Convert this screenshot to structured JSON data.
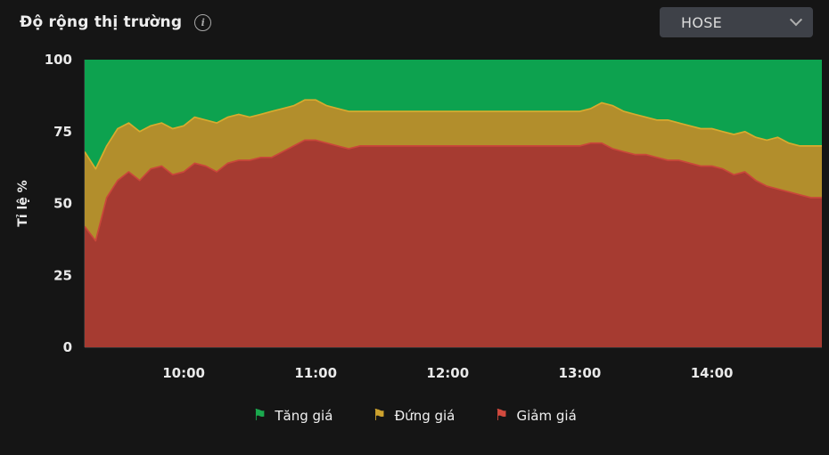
{
  "header": {
    "title": "Độ rộng thị trường",
    "info_icon": "i",
    "exchange_selector": {
      "value": "HOSE"
    }
  },
  "legend": {
    "items": [
      {
        "label": "Tăng giá",
        "color": "#1aa94e",
        "icon": "⚑"
      },
      {
        "label": "Đứng giá",
        "color": "#cda22e",
        "icon": "⚑"
      },
      {
        "label": "Giảm giá",
        "color": "#d24a3e",
        "icon": "⚑"
      }
    ]
  },
  "chart_data": {
    "type": "area",
    "stacked": true,
    "percent": true,
    "title": "Độ rộng thị trường",
    "xlabel": "",
    "ylabel": "Tỉ lệ %",
    "ylim": [
      0,
      100
    ],
    "yticks": [
      0,
      25,
      50,
      75,
      100
    ],
    "xticks": [
      "10:00",
      "11:00",
      "12:00",
      "13:00",
      "14:00"
    ],
    "grid": false,
    "legend_position": "bottom",
    "x": [
      "9:15",
      "9:20",
      "9:25",
      "9:30",
      "9:35",
      "9:40",
      "9:45",
      "9:50",
      "9:55",
      "10:00",
      "10:05",
      "10:10",
      "10:15",
      "10:20",
      "10:25",
      "10:30",
      "10:35",
      "10:40",
      "10:45",
      "10:50",
      "10:55",
      "11:00",
      "11:05",
      "11:10",
      "11:15",
      "11:20",
      "11:25",
      "11:30",
      "11:35",
      "11:40",
      "11:45",
      "11:50",
      "11:55",
      "12:00",
      "12:05",
      "12:10",
      "12:15",
      "12:20",
      "12:25",
      "12:30",
      "12:35",
      "12:40",
      "12:45",
      "12:50",
      "12:55",
      "13:00",
      "13:05",
      "13:10",
      "13:15",
      "13:20",
      "13:25",
      "13:30",
      "13:35",
      "13:40",
      "13:45",
      "13:50",
      "13:55",
      "14:00",
      "14:05",
      "14:10",
      "14:15",
      "14:20",
      "14:25",
      "14:30",
      "14:35",
      "14:40",
      "14:45",
      "14:50"
    ],
    "series": [
      {
        "key": "giam-gia",
        "name": "Giảm giá",
        "fill": "#a63b31",
        "line": "#c9473a",
        "values": [
          42,
          37,
          52,
          58,
          61,
          58,
          62,
          63,
          60,
          61,
          64,
          63,
          61,
          64,
          65,
          65,
          66,
          66,
          68,
          70,
          72,
          72,
          71,
          70,
          69,
          70,
          70,
          70,
          70,
          70,
          70,
          70,
          70,
          70,
          70,
          70,
          70,
          70,
          70,
          70,
          70,
          70,
          70,
          70,
          70,
          70,
          71,
          71,
          69,
          68,
          67,
          67,
          66,
          65,
          65,
          64,
          63,
          63,
          62,
          60,
          61,
          58,
          56,
          55,
          54,
          53,
          52,
          52
        ]
      },
      {
        "key": "dung-gia",
        "name": "Đứng giá",
        "fill": "#b28e2c",
        "line": "#d8ab2e",
        "values": [
          26,
          25,
          18,
          18,
          17,
          17,
          15,
          15,
          16,
          16,
          16,
          16,
          17,
          16,
          16,
          15,
          15,
          16,
          15,
          14,
          14,
          14,
          13,
          13,
          13,
          12,
          12,
          12,
          12,
          12,
          12,
          12,
          12,
          12,
          12,
          12,
          12,
          12,
          12,
          12,
          12,
          12,
          12,
          12,
          12,
          12,
          12,
          14,
          15,
          14,
          14,
          13,
          13,
          14,
          13,
          13,
          13,
          13,
          13,
          14,
          14,
          15,
          16,
          18,
          17,
          17,
          18,
          18
        ]
      },
      {
        "key": "tang-gia",
        "name": "Tăng giá",
        "fill": "#0da24f",
        "line": null,
        "values": [
          32,
          38,
          30,
          24,
          22,
          25,
          23,
          22,
          24,
          23,
          20,
          21,
          22,
          20,
          19,
          20,
          19,
          18,
          17,
          16,
          14,
          14,
          16,
          17,
          18,
          18,
          18,
          18,
          18,
          18,
          18,
          18,
          18,
          18,
          18,
          18,
          18,
          18,
          18,
          18,
          18,
          18,
          18,
          18,
          18,
          18,
          17,
          15,
          16,
          18,
          19,
          20,
          21,
          21,
          22,
          23,
          24,
          24,
          25,
          26,
          25,
          27,
          28,
          27,
          29,
          30,
          30,
          30
        ]
      }
    ]
  }
}
